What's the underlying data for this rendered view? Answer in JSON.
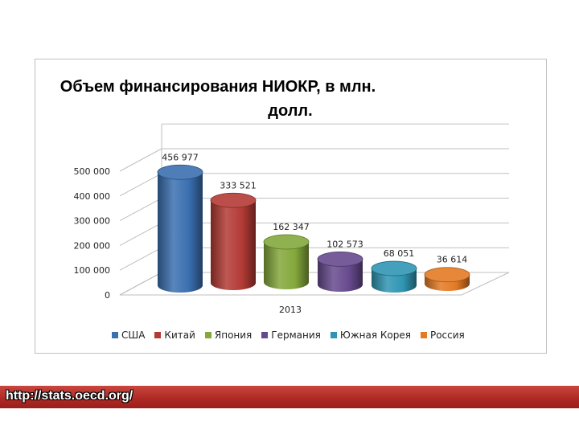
{
  "chart_data": {
    "type": "bar",
    "title_lines": [
      "Объем финансирования НИОКР, в млн.",
      "долл."
    ],
    "categories": [
      "2013"
    ],
    "series": [
      {
        "name": "США",
        "value": 456977,
        "label": "456 977",
        "color": "#3a6fb0"
      },
      {
        "name": "Китай",
        "value": 333521,
        "label": "333 521",
        "color": "#b33a35"
      },
      {
        "name": "Япония",
        "value": 162347,
        "label": "162 347",
        "color": "#84a83b"
      },
      {
        "name": "Германия",
        "value": 102573,
        "label": "102 573",
        "color": "#674a8e"
      },
      {
        "name": "Южная Корея",
        "value": 68051,
        "label": "68 051",
        "color": "#2f95b3"
      },
      {
        "name": "Россия",
        "value": 36614,
        "label": "36 614",
        "color": "#e37a24"
      }
    ],
    "y_ticks": [
      "0",
      "100 000",
      "200 000",
      "300 000",
      "400 000",
      "500 000"
    ],
    "ylim": [
      0,
      600000
    ],
    "legend_position": "bottom",
    "grid": true
  },
  "footer": {
    "link": "http://stats.oecd.org/"
  }
}
